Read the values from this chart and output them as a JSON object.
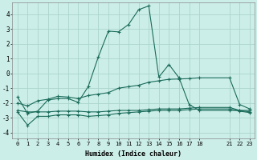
{
  "title": "",
  "xlabel": "Humidex (Indice chaleur)",
  "background_color": "#cceee8",
  "grid_color": "#aad4cc",
  "line_color": "#1a6b5a",
  "xlim": [
    -0.5,
    23.5
  ],
  "ylim": [
    -4.4,
    4.8
  ],
  "yticks": [
    -4,
    -3,
    -2,
    -1,
    0,
    1,
    2,
    3,
    4
  ],
  "xticks": [
    0,
    1,
    2,
    3,
    4,
    5,
    6,
    7,
    8,
    9,
    10,
    11,
    12,
    13,
    14,
    15,
    16,
    17,
    18,
    21,
    22,
    23
  ],
  "xtick_labels": [
    "0",
    "1",
    "2",
    "3",
    "4",
    "5",
    "6",
    "7",
    "8",
    "9",
    "10",
    "11",
    "12",
    "13",
    "14",
    "15",
    "16",
    "17",
    "18",
    "21",
    "22",
    "23"
  ],
  "series": [
    {
      "x": [
        0,
        1,
        2,
        3,
        4,
        5,
        6,
        7,
        8,
        9,
        10,
        11,
        12,
        13,
        14,
        15,
        16,
        17,
        18,
        21,
        22,
        23
      ],
      "y": [
        -1.6,
        -2.7,
        -2.55,
        -1.8,
        -1.7,
        -1.7,
        -1.95,
        -0.9,
        1.1,
        2.85,
        2.8,
        3.3,
        4.3,
        4.55,
        -0.25,
        0.6,
        -0.3,
        -2.1,
        -2.5,
        -2.5,
        -2.5,
        -2.5
      ]
    },
    {
      "x": [
        0,
        1,
        2,
        3,
        4,
        5,
        6,
        7,
        8,
        9,
        10,
        11,
        12,
        13,
        14,
        15,
        16,
        17,
        18,
        21,
        22,
        23
      ],
      "y": [
        -2.0,
        -2.2,
        -1.85,
        -1.75,
        -1.55,
        -1.6,
        -1.7,
        -1.5,
        -1.4,
        -1.3,
        -1.0,
        -0.9,
        -0.8,
        -0.6,
        -0.5,
        -0.4,
        -0.38,
        -0.35,
        -0.3,
        -0.3,
        -2.1,
        -2.4
      ]
    },
    {
      "x": [
        0,
        1,
        2,
        3,
        4,
        5,
        6,
        7,
        8,
        9,
        10,
        11,
        12,
        13,
        14,
        15,
        16,
        17,
        18,
        21,
        22,
        23
      ],
      "y": [
        -2.5,
        -2.6,
        -2.6,
        -2.6,
        -2.55,
        -2.55,
        -2.55,
        -2.6,
        -2.6,
        -2.55,
        -2.5,
        -2.5,
        -2.5,
        -2.45,
        -2.4,
        -2.4,
        -2.4,
        -2.35,
        -2.3,
        -2.3,
        -2.5,
        -2.6
      ]
    },
    {
      "x": [
        0,
        1,
        2,
        3,
        4,
        5,
        6,
        7,
        8,
        9,
        10,
        11,
        12,
        13,
        14,
        15,
        16,
        17,
        18,
        21,
        22,
        23
      ],
      "y": [
        -2.6,
        -3.5,
        -2.9,
        -2.9,
        -2.8,
        -2.8,
        -2.8,
        -2.9,
        -2.85,
        -2.8,
        -2.7,
        -2.65,
        -2.6,
        -2.55,
        -2.5,
        -2.5,
        -2.5,
        -2.45,
        -2.4,
        -2.4,
        -2.55,
        -2.65
      ]
    }
  ]
}
